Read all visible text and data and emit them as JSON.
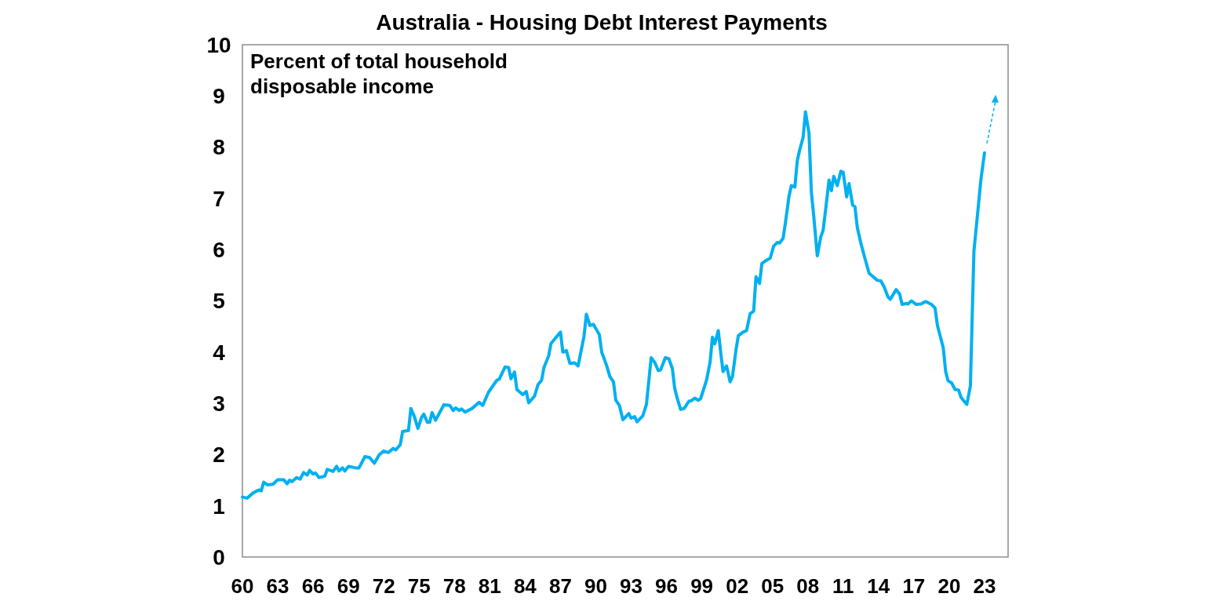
{
  "chart_data": {
    "type": "line",
    "title": "Australia - Housing Debt Interest Payments",
    "annotations": [
      "Percent of total household disposable income"
    ],
    "xlim": [
      1960,
      2025
    ],
    "xticks": [
      {
        "value": 1960,
        "label": "60"
      },
      {
        "value": 1963,
        "label": "63"
      },
      {
        "value": 1966,
        "label": "66"
      },
      {
        "value": 1969,
        "label": "69"
      },
      {
        "value": 1972,
        "label": "72"
      },
      {
        "value": 1975,
        "label": "75"
      },
      {
        "value": 1978,
        "label": "78"
      },
      {
        "value": 1981,
        "label": "81"
      },
      {
        "value": 1984,
        "label": "84"
      },
      {
        "value": 1987,
        "label": "87"
      },
      {
        "value": 1990,
        "label": "90"
      },
      {
        "value": 1993,
        "label": "93"
      },
      {
        "value": 1996,
        "label": "96"
      },
      {
        "value": 1999,
        "label": "99"
      },
      {
        "value": 2002,
        "label": "02"
      },
      {
        "value": 2005,
        "label": "05"
      },
      {
        "value": 2008,
        "label": "08"
      },
      {
        "value": 2011,
        "label": "11"
      },
      {
        "value": 2014,
        "label": "14"
      },
      {
        "value": 2017,
        "label": "17"
      },
      {
        "value": 2020,
        "label": "20"
      },
      {
        "value": 2023,
        "label": "23"
      }
    ],
    "ylim": [
      0,
      10
    ],
    "yticks": [
      0,
      1,
      2,
      3,
      4,
      5,
      6,
      7,
      8,
      9,
      10
    ],
    "grid": false,
    "marker": "none",
    "line_style": "solid",
    "series": [
      {
        "color": "#00b0f0",
        "x": [
          1960.0,
          1960.4,
          1960.9,
          1961.4,
          1961.6,
          1961.8,
          1962.1,
          1962.6,
          1963.0,
          1963.5,
          1963.8,
          1964.0,
          1964.2,
          1964.6,
          1964.9,
          1965.2,
          1965.5,
          1965.7,
          1966.0,
          1966.2,
          1966.5,
          1967.0,
          1967.2,
          1967.7,
          1968.0,
          1968.2,
          1968.5,
          1968.7,
          1969.0,
          1969.6,
          1969.9,
          1970.4,
          1970.8,
          1971.2,
          1971.6,
          1972.0,
          1972.4,
          1972.8,
          1973.0,
          1973.4,
          1973.6,
          1974.1,
          1974.3,
          1974.6,
          1974.9,
          1975.2,
          1975.4,
          1975.7,
          1975.9,
          1976.1,
          1976.4,
          1977.1,
          1977.6,
          1977.9,
          1978.1,
          1978.4,
          1978.6,
          1978.9,
          1979.5,
          1980.1,
          1980.4,
          1980.9,
          1981.6,
          1981.8,
          1982.3,
          1982.6,
          1982.8,
          1983.1,
          1983.3,
          1983.8,
          1984.1,
          1984.3,
          1984.8,
          1985.1,
          1985.4,
          1985.6,
          1986.0,
          1986.2,
          1987.0,
          1987.2,
          1987.5,
          1987.8,
          1988.2,
          1988.5,
          1989.0,
          1989.2,
          1989.5,
          1989.8,
          1990.3,
          1990.5,
          1990.9,
          1991.2,
          1991.5,
          1991.7,
          1992.0,
          1992.3,
          1992.8,
          1993.0,
          1993.3,
          1993.5,
          1994.0,
          1994.3,
          1994.7,
          1995.0,
          1995.3,
          1995.5,
          1995.9,
          1996.2,
          1996.5,
          1996.7,
          1996.9,
          1997.2,
          1997.5,
          1997.9,
          1998.1,
          1998.4,
          1998.7,
          1998.9,
          1999.4,
          1999.7,
          1999.9,
          2000.1,
          2000.4,
          2000.6,
          2000.8,
          2001.1,
          2001.4,
          2001.6,
          2001.9,
          2002.1,
          2002.5,
          2002.8,
          2003.1,
          2003.4,
          2003.6,
          2003.9,
          2004.1,
          2004.4,
          2004.8,
          2005.1,
          2005.4,
          2005.6,
          2005.9,
          2006.1,
          2006.4,
          2006.6,
          2006.9,
          2007.1,
          2007.3,
          2007.6,
          2007.8,
          2008.1,
          2008.3,
          2008.5,
          2008.8,
          2009.1,
          2009.3,
          2009.5,
          2009.8,
          2010.0,
          2010.2,
          2010.5,
          2010.8,
          2011.0,
          2011.3,
          2011.5,
          2011.8,
          2012.0,
          2012.2,
          2012.5,
          2012.8,
          2013.2,
          2013.6,
          2013.9,
          2014.2,
          2014.5,
          2014.8,
          2015.0,
          2015.5,
          2015.8,
          2016.0,
          2016.4,
          2016.5,
          2016.8,
          2017.2,
          2017.6,
          2018.0,
          2018.5,
          2018.8,
          2019.0,
          2019.5,
          2019.7,
          2019.9,
          2020.2,
          2020.5,
          2020.8,
          2021.0,
          2021.2,
          2021.5,
          2021.8,
          2022.1,
          2022.7,
          2023.0
        ],
        "values": [
          1.17,
          1.15,
          1.25,
          1.31,
          1.29,
          1.46,
          1.41,
          1.42,
          1.51,
          1.51,
          1.43,
          1.5,
          1.47,
          1.55,
          1.52,
          1.65,
          1.6,
          1.69,
          1.62,
          1.64,
          1.55,
          1.58,
          1.71,
          1.67,
          1.77,
          1.68,
          1.74,
          1.68,
          1.77,
          1.74,
          1.74,
          1.96,
          1.94,
          1.83,
          1.99,
          2.07,
          2.04,
          2.12,
          2.09,
          2.19,
          2.45,
          2.47,
          2.9,
          2.74,
          2.51,
          2.72,
          2.79,
          2.63,
          2.63,
          2.82,
          2.67,
          2.97,
          2.96,
          2.86,
          2.91,
          2.86,
          2.89,
          2.83,
          2.9,
          3.02,
          2.96,
          3.22,
          3.45,
          3.47,
          3.71,
          3.7,
          3.48,
          3.61,
          3.27,
          3.17,
          3.23,
          3.01,
          3.14,
          3.37,
          3.45,
          3.7,
          3.93,
          4.17,
          4.39,
          4.0,
          4.03,
          3.78,
          3.79,
          3.73,
          4.31,
          4.74,
          4.52,
          4.54,
          4.34,
          4.0,
          3.75,
          3.52,
          3.42,
          3.06,
          2.96,
          2.68,
          2.8,
          2.71,
          2.74,
          2.64,
          2.76,
          2.98,
          3.89,
          3.8,
          3.64,
          3.65,
          3.89,
          3.87,
          3.68,
          3.29,
          3.11,
          2.88,
          2.9,
          3.04,
          3.05,
          3.1,
          3.06,
          3.09,
          3.45,
          3.8,
          4.29,
          4.16,
          4.42,
          4.0,
          3.62,
          3.73,
          3.42,
          3.52,
          4.04,
          4.32,
          4.39,
          4.42,
          4.75,
          4.8,
          5.47,
          5.34,
          5.73,
          5.78,
          5.83,
          6.07,
          6.14,
          6.13,
          6.22,
          6.53,
          7.04,
          7.25,
          7.22,
          7.73,
          7.94,
          8.19,
          8.69,
          8.27,
          7.12,
          6.66,
          5.88,
          6.25,
          6.38,
          6.76,
          7.36,
          7.15,
          7.43,
          7.25,
          7.53,
          7.51,
          7.03,
          7.29,
          6.87,
          6.84,
          6.43,
          6.13,
          5.87,
          5.54,
          5.46,
          5.4,
          5.39,
          5.26,
          5.08,
          5.03,
          5.22,
          5.13,
          4.93,
          4.95,
          4.94,
          5.0,
          4.93,
          4.94,
          4.99,
          4.93,
          4.86,
          4.52,
          4.08,
          3.62,
          3.44,
          3.4,
          3.27,
          3.26,
          3.12,
          3.06,
          2.98,
          3.34,
          5.97,
          7.38,
          7.89
        ]
      }
    ]
  }
}
